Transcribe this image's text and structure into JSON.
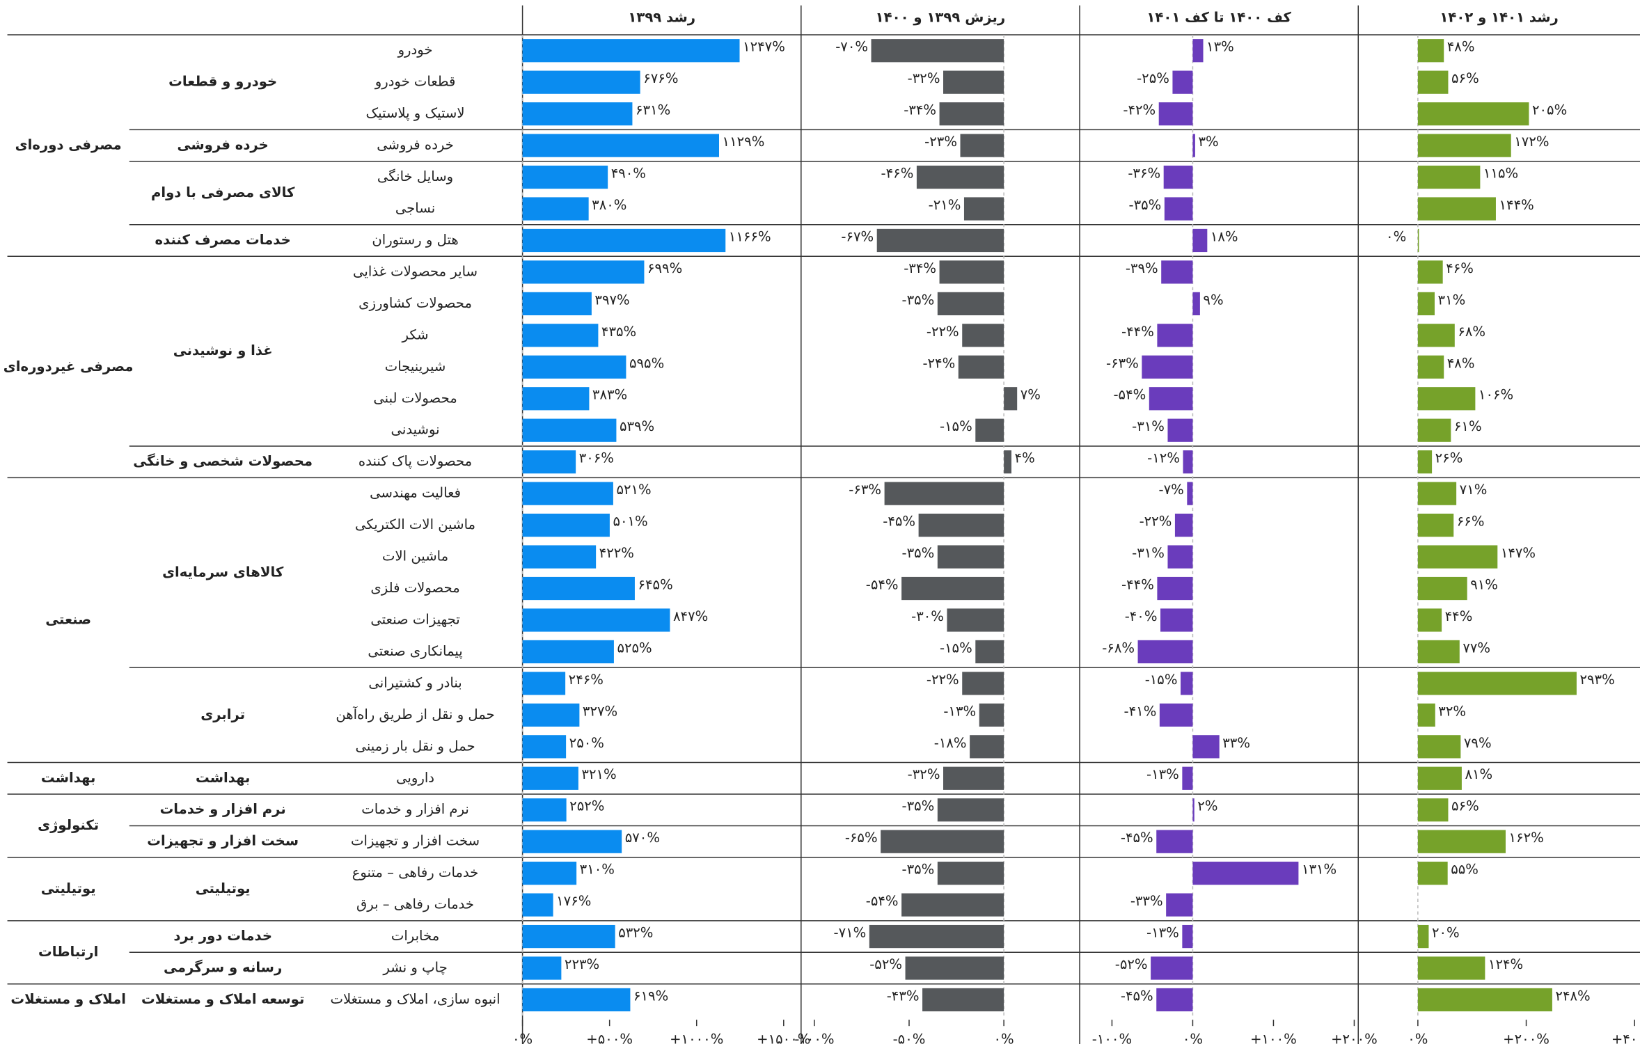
{
  "chart_data": {
    "type": "bar",
    "orientation": "horizontal",
    "sectors": [
      {
        "name": "مصرفی دوره‌ای",
        "groups": [
          {
            "name": "خودرو و قطعات",
            "industries": [
              "خودرو",
              "قطعات خودرو",
              "لاستیک و پلاستیک"
            ]
          },
          {
            "name": "خرده فروشی",
            "industries": [
              "خرده فروشی"
            ]
          },
          {
            "name": "کالای مصرفی با دوام",
            "industries": [
              "وسایل خانگی",
              "نساجی"
            ]
          },
          {
            "name": "خدمات مصرف کننده",
            "industries": [
              "هتل و رستوران"
            ]
          }
        ]
      },
      {
        "name": "مصرفی غیردوره‌ای",
        "groups": [
          {
            "name": "غذا و نوشیدنی",
            "industries": [
              "سایر محصولات غذایی",
              "محصولات کشاورزی",
              "شکر",
              "شیرینیجات",
              "محصولات لبنی",
              "نوشیدنی"
            ]
          },
          {
            "name": "محصولات شخصی و خانگی",
            "industries": [
              "محصولات پاک کننده"
            ]
          }
        ]
      },
      {
        "name": "صنعتی",
        "groups": [
          {
            "name": "کالاهای سرمایه‌ای",
            "industries": [
              "فعالیت مهندسی",
              "ماشین الات الکتریکی",
              "ماشین الات",
              "محصولات فلزی",
              "تجهیزات صنعتی",
              "پیمانکاری صنعتی"
            ]
          },
          {
            "name": "ترابری",
            "industries": [
              "بنادر و کشتیرانی",
              "حمل و نقل از طریق راه‌آهن",
              "حمل و نقل بار زمینی"
            ]
          }
        ]
      },
      {
        "name": "بهداشت",
        "groups": [
          {
            "name": "بهداشت",
            "industries": [
              "دارویی"
            ]
          }
        ]
      },
      {
        "name": "تکنولوژی",
        "groups": [
          {
            "name": "نرم افزار و خدمات",
            "industries": [
              "نرم افزار و خدمات"
            ]
          },
          {
            "name": "سخت افزار و تجهیزات",
            "industries": [
              "سخت افزار و تجهیزات"
            ]
          }
        ]
      },
      {
        "name": "یوتیلیتی",
        "groups": [
          {
            "name": "یوتیلیتی",
            "industries": [
              "خدمات رفاهی – متنوع",
              "خدمات رفاهی – برق"
            ]
          }
        ]
      },
      {
        "name": "ارتباطات",
        "groups": [
          {
            "name": "خدمات دور برد",
            "industries": [
              "مخابرات"
            ]
          },
          {
            "name": "رسانه و سرگرمی",
            "industries": [
              "چاپ و نشر"
            ]
          }
        ]
      },
      {
        "name": "املاک و مستغلات",
        "groups": [
          {
            "name": "توسعه املاک و مستغلات",
            "industries": [
              "انبوه سازی، املاک و مستغلات"
            ]
          }
        ]
      }
    ],
    "series": [
      {
        "name": "رشد ۱۳۹۹",
        "color": "#0a8cf0",
        "xlim": [
          0,
          1600
        ],
        "xticks": [
          {
            "value": 0,
            "label": "۰%"
          },
          {
            "value": 500,
            "label": "+۵۰۰%"
          },
          {
            "value": 1000,
            "label": "+۱۰۰۰%"
          },
          {
            "value": 1500,
            "label": "+۱۵۰۰%"
          }
        ],
        "values": [
          1247,
          676,
          631,
          1129,
          490,
          380,
          1166,
          699,
          397,
          435,
          595,
          383,
          539,
          306,
          521,
          501,
          422,
          645,
          847,
          525,
          246,
          327,
          250,
          321,
          252,
          570,
          310,
          176,
          532,
          223,
          619
        ],
        "value_labels": [
          "۱۲۴۷%",
          "۶۷۶%",
          "۶۳۱%",
          "۱۱۲۹%",
          "۴۹۰%",
          "۳۸۰%",
          "۱۱۶۶%",
          "۶۹۹%",
          "۳۹۷%",
          "۴۳۵%",
          "۵۹۵%",
          "۳۸۳%",
          "۵۳۹%",
          "۳۰۶%",
          "۵۲۱%",
          "۵۰۱%",
          "۴۲۲%",
          "۶۴۵%",
          "۸۴۷%",
          "۵۲۵%",
          "۲۴۶%",
          "۳۲۷%",
          "۲۵۰%",
          "۳۲۱%",
          "۲۵۲%",
          "۵۷۰%",
          "۳۱۰%",
          "۱۷۶%",
          "۵۳۲%",
          "۲۲۳%",
          "۶۱۹%"
        ]
      },
      {
        "name": "ریزش ۱۳۹۹ و ۱۴۰۰",
        "color": "#55585b",
        "xlim": [
          -107,
          40
        ],
        "xticks": [
          {
            "value": -100,
            "label": "-۱۰۰%"
          },
          {
            "value": -50,
            "label": "-۵۰%"
          },
          {
            "value": 0,
            "label": "۰%"
          }
        ],
        "values": [
          -70,
          -32,
          -34,
          -23,
          -46,
          -21,
          -67,
          -34,
          -35,
          -22,
          -24,
          7,
          -15,
          4,
          -63,
          -45,
          -35,
          -54,
          -30,
          -15,
          -22,
          -13,
          -18,
          -32,
          -35,
          -65,
          -35,
          -54,
          -71,
          -52,
          -43
        ],
        "value_labels": [
          "-۷۰%",
          "-۳۲%",
          "-۳۴%",
          "-۲۳%",
          "-۴۶%",
          "-۲۱%",
          "-۶۷%",
          "-۳۴%",
          "-۳۵%",
          "-۲۲%",
          "-۲۴%",
          "۷%",
          "-۱۵%",
          "۴%",
          "-۶۳%",
          "-۴۵%",
          "-۳۵%",
          "-۵۴%",
          "-۳۰%",
          "-۱۵%",
          "-۲۲%",
          "-۱۳%",
          "-۱۸%",
          "-۳۲%",
          "-۳۵%",
          "-۶۵%",
          "-۳۵%",
          "-۵۴%",
          "-۷۱%",
          "-۵۲%",
          "-۴۳%"
        ]
      },
      {
        "name": "کف ۱۴۰۰ تا کف ۱۴۰۱",
        "color": "#6a3cbc",
        "xlim": [
          -140,
          205
        ],
        "xticks": [
          {
            "value": -100,
            "label": "-۱۰۰%"
          },
          {
            "value": 0,
            "label": "۰%"
          },
          {
            "value": 100,
            "label": "+۱۰۰%"
          },
          {
            "value": 200,
            "label": "+۲۰۰%"
          }
        ],
        "values": [
          13,
          -25,
          -42,
          3,
          -36,
          -35,
          18,
          -39,
          9,
          -44,
          -63,
          -54,
          -31,
          -12,
          -7,
          -22,
          -31,
          -44,
          -40,
          -68,
          -15,
          -41,
          33,
          -13,
          2,
          -45,
          131,
          -33,
          -13,
          -52,
          -45
        ],
        "value_labels": [
          "۱۳%",
          "-۲۵%",
          "-۴۲%",
          "۳%",
          "-۳۶%",
          "-۳۵%",
          "۱۸%",
          "-۳۹%",
          "۹%",
          "-۴۴%",
          "-۶۳%",
          "-۵۴%",
          "-۳۱%",
          "-۱۲%",
          "-۷%",
          "-۲۲%",
          "-۳۱%",
          "-۴۴%",
          "-۴۰%",
          "-۶۸%",
          "-۱۵%",
          "-۴۱%",
          "۳۳%",
          "-۱۳%",
          "۲%",
          "-۴۵%",
          "۱۳۱%",
          "-۳۳%",
          "-۱۳%",
          "-۵۲%",
          "-۴۵%"
        ]
      },
      {
        "name": "رشد ۱۴۰۱ و ۱۴۰۲",
        "color": "#76a22a",
        "xlim": [
          -110,
          410
        ],
        "xticks": [
          {
            "value": 0,
            "label": "۰%"
          },
          {
            "value": 200,
            "label": "+۲۰۰%"
          },
          {
            "value": 400,
            "label": "+۴۰۰%"
          }
        ],
        "values": [
          48,
          56,
          205,
          172,
          115,
          144,
          0,
          46,
          31,
          68,
          48,
          106,
          61,
          26,
          71,
          66,
          147,
          91,
          44,
          77,
          293,
          32,
          79,
          81,
          56,
          162,
          55,
          null,
          20,
          124,
          248
        ],
        "value_labels": [
          "۴۸%",
          "۵۶%",
          "۲۰۵%",
          "۱۷۲%",
          "۱۱۵%",
          "۱۴۴%",
          "۰%",
          "۴۶%",
          "۳۱%",
          "۶۸%",
          "۴۸%",
          "۱۰۶%",
          "۶۱%",
          "۲۶%",
          "۷۱%",
          "۶۶%",
          "۱۴۷%",
          "۹۱%",
          "۴۴%",
          "۷۷%",
          "۲۹۳%",
          "۳۲%",
          "۷۹%",
          "۸۱%",
          "۵۶%",
          "۱۶۲%",
          "۵۵%",
          null,
          "۲۰%",
          "۱۲۴%",
          "۲۴۸%"
        ]
      }
    ]
  }
}
